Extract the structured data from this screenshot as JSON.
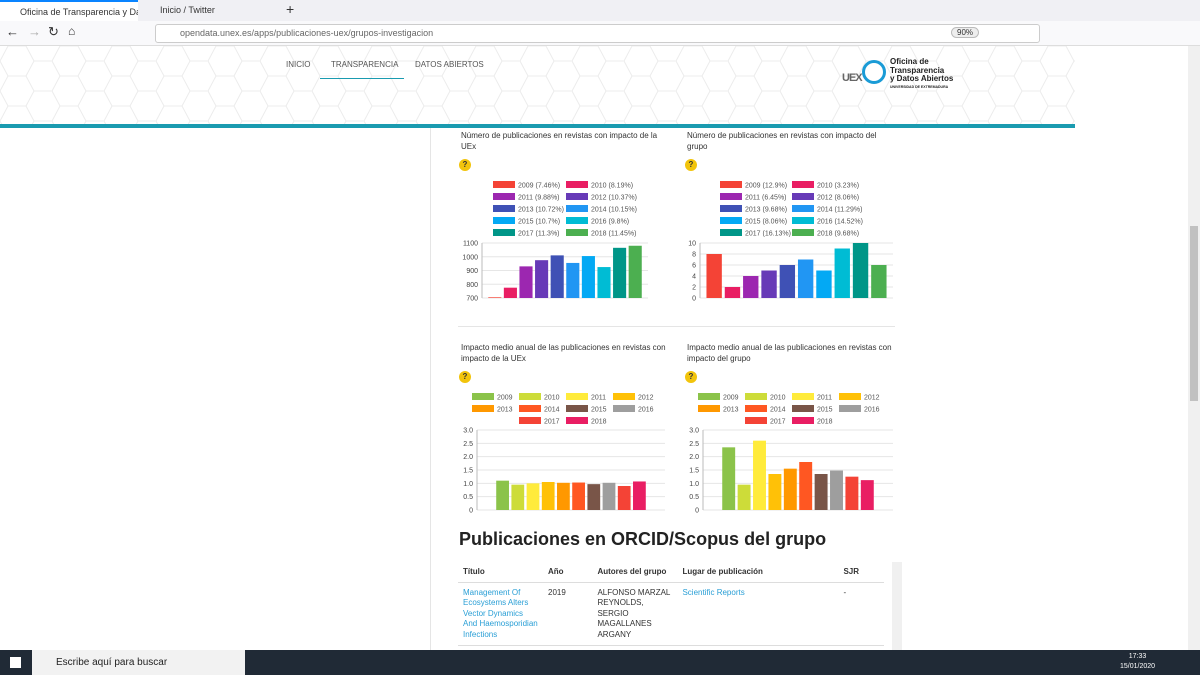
{
  "browser": {
    "tabs": [
      "Oficina de Transparencia y Dato",
      "Inicio / Twitter"
    ],
    "url": "opendata.unex.es/apps/publicaciones-uex/grupos-investigacion",
    "zoom": "90%"
  },
  "nav": [
    "INICIO",
    "TRANSPARENCIA",
    "DATOS ABIERTOS"
  ],
  "logo": {
    "mark": "UEX",
    "lines": [
      "Oficina de",
      "Transparencia",
      "y Datos Abiertos"
    ],
    "sub": "UNIVERSIDAD DE EXTREMADURA"
  },
  "help_icon": "?",
  "chart_data": [
    {
      "type": "bar",
      "title": "Número de publicaciones en revistas con impacto de la UEx",
      "categories": [
        "2009 (7.46%)",
        "2010 (8.19%)",
        "2011 (9.88%)",
        "2012 (10.37%)",
        "2013 (10.72%)",
        "2014 (10.15%)",
        "2015 (10.7%)",
        "2016 (9.8%)",
        "2017 (11.3%)",
        "2018 (11.45%)"
      ],
      "values": [
        705,
        775,
        930,
        975,
        1010,
        955,
        1005,
        925,
        1065,
        1080
      ],
      "colors": [
        "#f44336",
        "#e91e63",
        "#9c27b0",
        "#673ab7",
        "#3f51b5",
        "#2196f3",
        "#03a9f4",
        "#00bcd4",
        "#009688",
        "#4caf50"
      ],
      "ylim": [
        700,
        1100
      ],
      "yticks": [
        700,
        800,
        900,
        1000,
        1100
      ],
      "grid": true
    },
    {
      "type": "bar",
      "title": "Número de publicaciones en revistas con impacto del grupo",
      "categories": [
        "2009 (12.9%)",
        "2010 (3.23%)",
        "2011 (6.45%)",
        "2012 (8.06%)",
        "2013 (9.68%)",
        "2014 (11.29%)",
        "2015 (8.06%)",
        "2016 (14.52%)",
        "2017 (16.13%)",
        "2018 (9.68%)"
      ],
      "values": [
        8,
        2,
        4,
        5,
        6,
        7,
        5,
        9,
        10,
        6
      ],
      "colors": [
        "#f44336",
        "#e91e63",
        "#9c27b0",
        "#673ab7",
        "#3f51b5",
        "#2196f3",
        "#03a9f4",
        "#00bcd4",
        "#009688",
        "#4caf50"
      ],
      "ylim": [
        0,
        10
      ],
      "yticks": [
        0,
        2,
        4,
        6,
        8,
        10
      ],
      "grid": true
    },
    {
      "type": "bar",
      "title": "Impacto medio anual de las publicaciones en revistas con impacto de la UEx",
      "categories": [
        "2009",
        "2010",
        "2011",
        "2012",
        "2013",
        "2014",
        "2015",
        "2016",
        "2017",
        "2018"
      ],
      "values": [
        1.1,
        0.95,
        1.0,
        1.05,
        1.02,
        1.03,
        0.97,
        1.02,
        0.9,
        1.07
      ],
      "colors": [
        "#8bc34a",
        "#cddc39",
        "#ffeb3b",
        "#ffc107",
        "#ff9800",
        "#ff5722",
        "#795548",
        "#9e9e9e",
        "#f44336",
        "#e91e63"
      ],
      "ylim": [
        0,
        3
      ],
      "yticks": [
        0,
        0.5,
        {
          "value": 1,
          "label": "1.0"
        },
        1.5,
        {
          "value": 2,
          "label": "2.0"
        },
        2.5,
        {
          "value": 3,
          "label": "3.0"
        }
      ],
      "grid": true
    },
    {
      "type": "bar",
      "title": "Impacto medio anual de las publicaciones en revistas con impacto del grupo",
      "categories": [
        "2009",
        "2010",
        "2011",
        "2012",
        "2013",
        "2014",
        "2015",
        "2016",
        "2017",
        "2018"
      ],
      "values": [
        2.35,
        0.95,
        2.6,
        1.35,
        1.55,
        1.8,
        1.35,
        1.48,
        1.25,
        1.12
      ],
      "colors": [
        "#8bc34a",
        "#cddc39",
        "#ffeb3b",
        "#ffc107",
        "#ff9800",
        "#ff5722",
        "#795548",
        "#9e9e9e",
        "#f44336",
        "#e91e63"
      ],
      "ylim": [
        0,
        3
      ],
      "yticks": [
        0,
        0.5,
        {
          "value": 1,
          "label": "1.0"
        },
        1.5,
        {
          "value": 2,
          "label": "2.0"
        },
        2.5,
        {
          "value": 3,
          "label": "3.0"
        }
      ],
      "grid": true
    }
  ],
  "section_title": "Publicaciones en ORCID/Scopus del grupo",
  "table": {
    "header": [
      "Título",
      "Año",
      "Autores del grupo",
      "Lugar de publicación",
      "SJR"
    ],
    "rows": [
      [
        "Management Of Ecosystems Alters Vector Dynamics And Haemosporidian Infections",
        "2019",
        "ALFONSO MARZAL REYNOLDS, SERGIO MAGALLANES ARGANY",
        "Scientific Reports",
        "-"
      ]
    ]
  },
  "taskbar": {
    "search": "Escribe aquí para buscar",
    "time": "17:33",
    "date": "15/01/2020"
  }
}
